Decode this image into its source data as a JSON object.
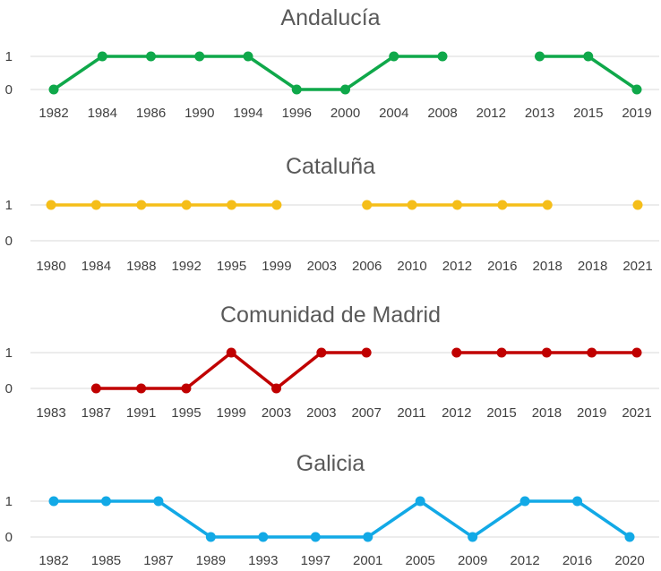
{
  "chart_data": [
    {
      "type": "line",
      "title": "Andalucía",
      "categories": [
        "1982",
        "1984",
        "1986",
        "1990",
        "1994",
        "1996",
        "2000",
        "2004",
        "2008",
        "2012",
        "2013",
        "2015",
        "2019"
      ],
      "yticks": [
        "0",
        "1"
      ],
      "ylim": [
        0,
        1
      ],
      "series": [
        {
          "values": [
            0,
            1,
            1,
            1,
            1,
            0,
            0,
            1,
            1,
            null,
            1,
            1,
            0
          ]
        }
      ],
      "color": "#0fa84a",
      "grid": true
    },
    {
      "type": "line",
      "title": "Cataluña",
      "categories": [
        "1980",
        "1984",
        "1988",
        "1992",
        "1995",
        "1999",
        "2003",
        "2006",
        "2010",
        "2012",
        "2016",
        "2018",
        "2018",
        "2021"
      ],
      "yticks": [
        "0",
        "1"
      ],
      "ylim": [
        0,
        1
      ],
      "series": [
        {
          "values": [
            1,
            1,
            1,
            1,
            1,
            1,
            null,
            1,
            1,
            1,
            1,
            1,
            null,
            1
          ]
        }
      ],
      "color": "#f5be19",
      "grid": true
    },
    {
      "type": "line",
      "title": "Comunidad de Madrid",
      "categories": [
        "1983",
        "1987",
        "1991",
        "1995",
        "1999",
        "2003",
        "2003",
        "2007",
        "2011",
        "2012",
        "2015",
        "2018",
        "2019",
        "2021"
      ],
      "yticks": [
        "0",
        "1"
      ],
      "ylim": [
        0,
        1
      ],
      "series": [
        {
          "values": [
            null,
            0,
            0,
            0,
            1,
            0,
            1,
            1,
            null,
            1,
            1,
            1,
            1,
            1
          ]
        }
      ],
      "color": "#c00000",
      "grid": true
    },
    {
      "type": "line",
      "title": "Galicia",
      "categories": [
        "1982",
        "1985",
        "1987",
        "1989",
        "1993",
        "1997",
        "2001",
        "2005",
        "2009",
        "2012",
        "2016",
        "2020"
      ],
      "yticks": [
        "0",
        "1"
      ],
      "ylim": [
        0,
        1
      ],
      "series": [
        {
          "values": [
            1,
            1,
            1,
            0,
            0,
            0,
            0,
            1,
            0,
            1,
            1,
            0
          ]
        }
      ],
      "color": "#12a9e6",
      "grid": true
    }
  ]
}
